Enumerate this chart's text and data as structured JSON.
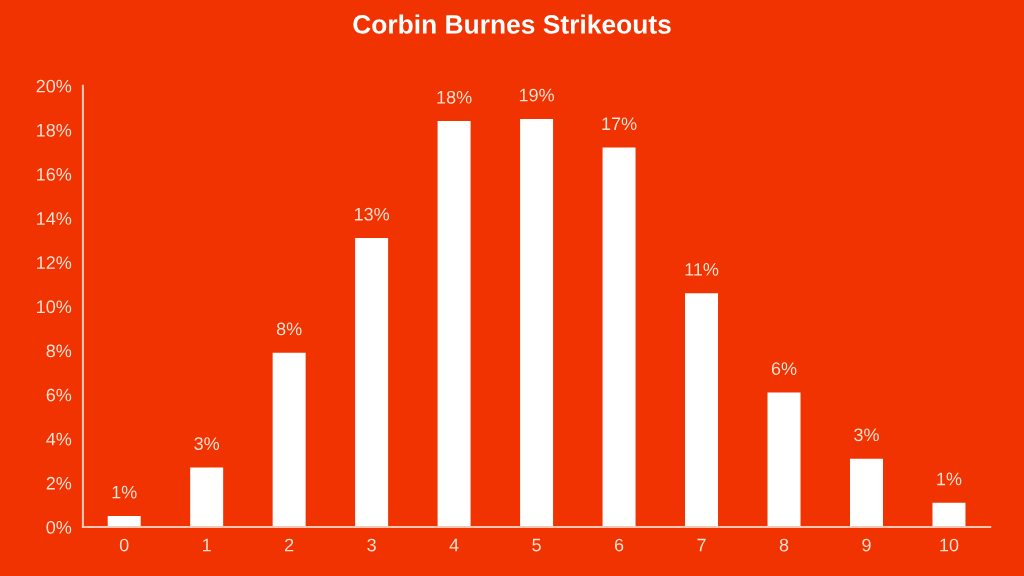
{
  "chart_data": {
    "type": "bar",
    "title": "Corbin Burnes Strikeouts",
    "categories": [
      "0",
      "1",
      "2",
      "3",
      "4",
      "5",
      "6",
      "7",
      "8",
      "9",
      "10"
    ],
    "values": [
      0.5,
      2.7,
      7.9,
      13.1,
      18.4,
      18.5,
      17.2,
      10.6,
      6.1,
      3.1,
      1.1
    ],
    "value_labels": [
      "1%",
      "3%",
      "8%",
      "13%",
      "18%",
      "19%",
      "17%",
      "11%",
      "6%",
      "3%",
      "1%"
    ],
    "color": "#ffffff",
    "ylim": [
      0,
      20
    ],
    "yticks": [
      {
        "value": 0,
        "label": "0%"
      },
      {
        "value": 2,
        "label": "2%"
      },
      {
        "value": 4,
        "label": "4%"
      },
      {
        "value": 6,
        "label": "6%"
      },
      {
        "value": 8,
        "label": "8%"
      },
      {
        "value": 10,
        "label": "10%"
      },
      {
        "value": 12,
        "label": "12%"
      },
      {
        "value": 14,
        "label": "14%"
      },
      {
        "value": 16,
        "label": "16%"
      },
      {
        "value": 18,
        "label": "18%"
      },
      {
        "value": 20,
        "label": "20%"
      }
    ],
    "grid": false,
    "legend": false
  }
}
